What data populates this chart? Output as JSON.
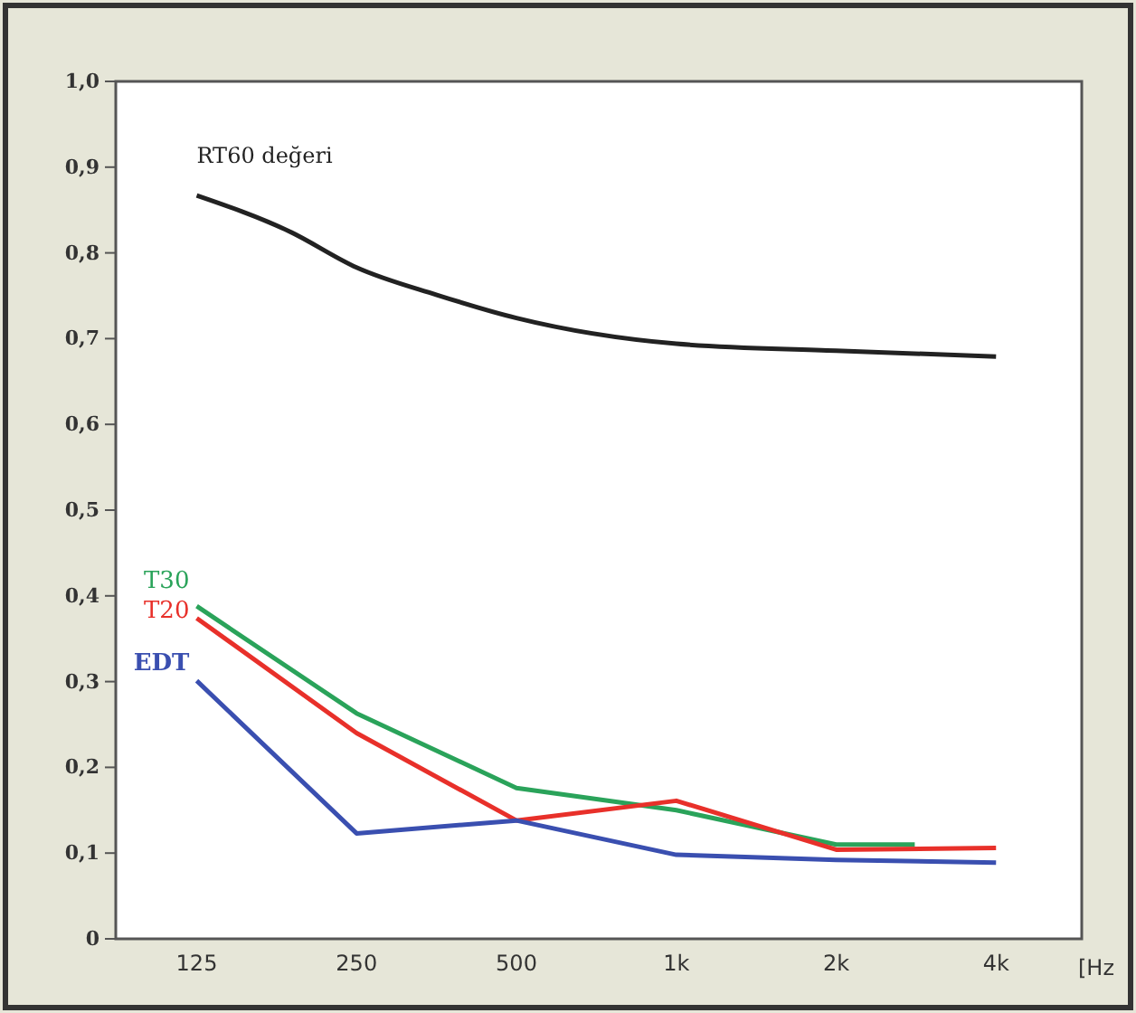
{
  "chart_data": {
    "type": "line",
    "xlabel": "[Hz",
    "log": "x",
    "xlim": [
      88,
      5800
    ],
    "xticks": [
      125,
      250,
      500,
      {
        "value": 1000,
        "label": "1k"
      },
      {
        "value": 2000,
        "label": "2k"
      },
      {
        "value": 4000,
        "label": "4k"
      }
    ],
    "ylim": [
      0,
      1
    ],
    "yticks": [
      0,
      {
        "value": 0.1,
        "label": "0,1"
      },
      {
        "value": 0.2,
        "label": "0,2"
      },
      {
        "value": 0.3,
        "label": "0,3"
      },
      {
        "value": 0.4,
        "label": "0,4"
      },
      {
        "value": 0.5,
        "label": "0,5"
      },
      {
        "value": 0.6,
        "label": "0,6"
      },
      {
        "value": 0.7,
        "label": "0,7"
      },
      {
        "value": 0.8,
        "label": "0,8"
      },
      {
        "value": 0.9,
        "label": "0,9"
      },
      {
        "value": 1,
        "label": "1,0"
      }
    ],
    "grid": false,
    "marker": "none",
    "line_style": "solid",
    "series": [
      {
        "name": "RT60 değeri",
        "color": "#222222",
        "x": [
          125,
          187,
          250,
          354,
          500,
          1000,
          2000,
          4000
        ],
        "values": [
          0.867,
          0.825,
          0.783,
          0.751,
          0.724,
          0.694,
          0.686,
          0.679
        ]
      },
      {
        "name": "T30",
        "color": "#2aa35a",
        "x": [
          125,
          250,
          500,
          1000,
          2000,
          2812
        ],
        "values": [
          0.388,
          0.263,
          0.176,
          0.15,
          0.11,
          0.11
        ]
      },
      {
        "name": "T20",
        "color": "#e8302a",
        "x": [
          125,
          250,
          500,
          1000,
          2000,
          4000
        ],
        "values": [
          0.374,
          0.24,
          0.138,
          0.161,
          0.104,
          0.106
        ]
      },
      {
        "name": "EDT",
        "color": "#3a4fb0",
        "x": [
          125,
          250,
          500,
          1000,
          2000,
          4000
        ],
        "values": [
          0.301,
          0.123,
          0.138,
          0.098,
          0.092,
          0.089
        ]
      }
    ]
  }
}
